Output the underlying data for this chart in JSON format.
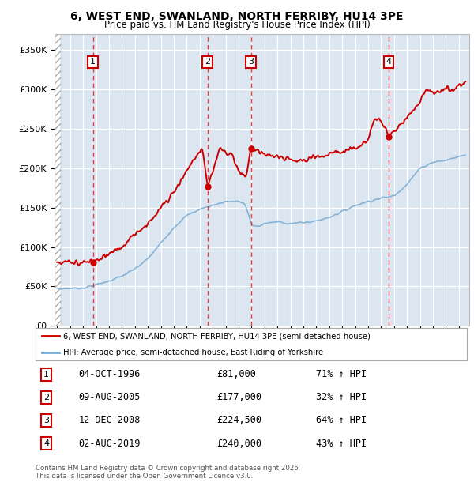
{
  "title": "6, WEST END, SWANLAND, NORTH FERRIBY, HU14 3PE",
  "subtitle": "Price paid vs. HM Land Registry's House Price Index (HPI)",
  "bg_color": "#dce6f1",
  "ylim": [
    0,
    370000
  ],
  "yticks": [
    0,
    50000,
    100000,
    150000,
    200000,
    250000,
    300000,
    350000
  ],
  "ytick_labels": [
    "£0",
    "£50K",
    "£100K",
    "£150K",
    "£200K",
    "£250K",
    "£300K",
    "£350K"
  ],
  "legend_label_red": "6, WEST END, SWANLAND, NORTH FERRIBY, HU14 3PE (semi-detached house)",
  "legend_label_blue": "HPI: Average price, semi-detached house, East Riding of Yorkshire",
  "transactions": [
    {
      "num": 1,
      "date": "04-OCT-1996",
      "price": 81000,
      "hpi_pct": "71% ↑ HPI",
      "x": 1996.77
    },
    {
      "num": 2,
      "date": "09-AUG-2005",
      "price": 177000,
      "hpi_pct": "32% ↑ HPI",
      "x": 2005.61
    },
    {
      "num": 3,
      "date": "12-DEC-2008",
      "price": 224500,
      "hpi_pct": "64% ↑ HPI",
      "x": 2008.95
    },
    {
      "num": 4,
      "date": "02-AUG-2019",
      "price": 240000,
      "hpi_pct": "43% ↑ HPI",
      "x": 2019.59
    }
  ],
  "footer": "Contains HM Land Registry data © Crown copyright and database right 2025.\nThis data is licensed under the Open Government Licence v3.0.",
  "red_color": "#cc0000",
  "blue_color": "#7aadd4",
  "xmin": 1993.8,
  "xmax": 2025.8
}
